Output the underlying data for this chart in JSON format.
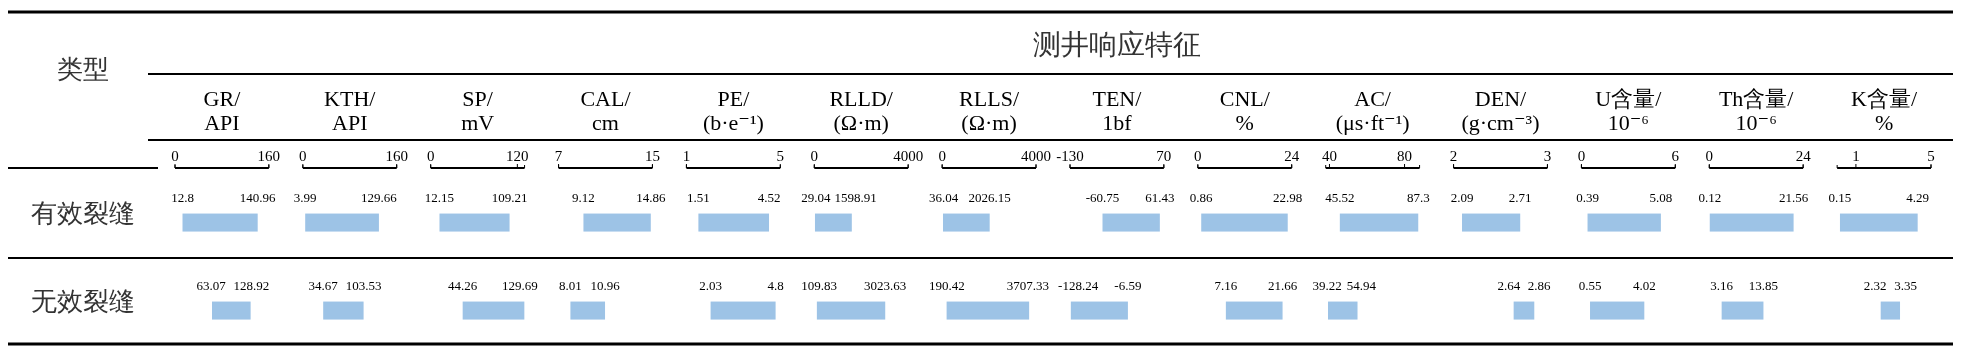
{
  "chart_data": [
    {
      "type": "bar",
      "orientation": "horizontal",
      "ylabel": "类型",
      "xlabel": "GR/API",
      "categories": [
        "有效裂缝",
        "无效裂缝"
      ],
      "base": [
        12.8,
        63.07
      ],
      "values": [
        128.16,
        65.85
      ],
      "color": "#9dc3e6",
      "xlim": [
        0,
        160
      ],
      "xticks": [
        0,
        160
      ],
      "annotations": [
        {
          "text": "12.8",
          "x": 12.8,
          "y": "有效裂缝"
        },
        {
          "text": "140.96",
          "x": 140.96,
          "y": "有效裂缝"
        },
        {
          "text": "63.07",
          "x": 63.07,
          "y": "无效裂缝"
        },
        {
          "text": "128.92",
          "x": 128.92,
          "y": "无效裂缝"
        }
      ]
    },
    {
      "type": "bar",
      "orientation": "horizontal",
      "tick_labels": "x",
      "xlabel": "KTH/API",
      "categories": [
        "有效裂缝",
        "无效裂缝"
      ],
      "base": [
        3.99,
        34.67
      ],
      "values": [
        125.67,
        68.86
      ],
      "color": "#9dc3e6",
      "xlim": [
        0,
        160
      ],
      "xticks": [
        0,
        160
      ],
      "annotations": [
        {
          "text": "3.99",
          "x": 3.99,
          "y": "有效裂缝"
        },
        {
          "text": "129.66",
          "x": 129.66,
          "y": "有效裂缝"
        },
        {
          "text": "34.67",
          "x": 34.67,
          "y": "无效裂缝"
        },
        {
          "text": "103.53",
          "x": 103.53,
          "y": "无效裂缝"
        }
      ]
    },
    {
      "type": "bar",
      "orientation": "horizontal",
      "tick_labels": "x",
      "xlabel": "SP/mV",
      "categories": [
        "有效裂缝",
        "无效裂缝"
      ],
      "base": [
        12.15,
        44.26
      ],
      "values": [
        97.06,
        85.43
      ],
      "color": "#9dc3e6",
      "xlim": [
        0,
        130
      ],
      "xticks": [
        0,
        120
      ],
      "annotations": [
        {
          "text": "12.15",
          "x": 12.15,
          "y": "有效裂缝"
        },
        {
          "text": "109.21",
          "x": 109.21,
          "y": "有效裂缝"
        },
        {
          "text": "44.26",
          "x": 44.26,
          "y": "无效裂缝"
        },
        {
          "text": "129.69",
          "x": 129.69,
          "y": "无效裂缝"
        }
      ]
    },
    {
      "type": "bar",
      "orientation": "horizontal",
      "tick_labels": "x",
      "xlabel": "CAL/cm",
      "categories": [
        "有效裂缝",
        "无效裂缝"
      ],
      "base": [
        9.12,
        8.01
      ],
      "values": [
        5.74,
        2.95
      ],
      "color": "#9dc3e6",
      "xlim": [
        7,
        15
      ],
      "xticks": [
        7,
        15
      ],
      "annotations": [
        {
          "text": "9.12",
          "x": 9.12,
          "y": "有效裂缝"
        },
        {
          "text": "14.86",
          "x": 14.86,
          "y": "有效裂缝"
        },
        {
          "text": "8.01",
          "x": 8.01,
          "y": "无效裂缝"
        },
        {
          "text": "10.96",
          "x": 10.96,
          "y": "无效裂缝"
        }
      ]
    },
    {
      "type": "bar",
      "orientation": "horizontal",
      "tick_labels": "x",
      "xlabel": "PE/(b·e⁻¹)",
      "categories": [
        "有效裂缝",
        "无效裂缝"
      ],
      "base": [
        1.51,
        2.03
      ],
      "values": [
        3.01,
        2.77
      ],
      "color": "#9dc3e6",
      "xlim": [
        1,
        5
      ],
      "xticks": [
        1,
        5
      ],
      "annotations": [
        {
          "text": "1.51",
          "x": 1.51,
          "y": "有效裂缝"
        },
        {
          "text": "4.52",
          "x": 4.52,
          "y": "有效裂缝"
        },
        {
          "text": "2.03",
          "x": 2.03,
          "y": "无效裂缝"
        },
        {
          "text": "4.8",
          "x": 4.8,
          "y": "无效裂缝"
        }
      ]
    },
    {
      "type": "bar",
      "orientation": "horizontal",
      "tick_labels": "x",
      "xlabel": "RLLD/(Ω·m)",
      "categories": [
        "有效裂缝",
        "无效裂缝"
      ],
      "base": [
        29.04,
        109.83
      ],
      "values": [
        1569.87,
        2913.8
      ],
      "color": "#9dc3e6",
      "xlim": [
        0,
        4000
      ],
      "xticks": [
        0,
        4000
      ],
      "annotations": [
        {
          "text": "29.04",
          "x": 29.04,
          "y": "有效裂缝"
        },
        {
          "text": "1598.91",
          "x": 1598.91,
          "y": "有效裂缝"
        },
        {
          "text": "109.83",
          "x": 109.83,
          "y": "无效裂缝"
        },
        {
          "text": "3023.63",
          "x": 3023.63,
          "y": "无效裂缝"
        }
      ]
    },
    {
      "type": "bar",
      "orientation": "horizontal",
      "tick_labels": "x",
      "xlabel": "RLLS/(Ω·m)",
      "categories": [
        "有效裂缝",
        "无效裂缝"
      ],
      "base": [
        36.04,
        190.42
      ],
      "values": [
        1990.11,
        3516.91
      ],
      "color": "#9dc3e6",
      "xlim": [
        0,
        4000
      ],
      "xticks": [
        0,
        4000
      ],
      "annotations": [
        {
          "text": "36.04",
          "x": 36.04,
          "y": "有效裂缝"
        },
        {
          "text": "2026.15",
          "x": 2026.15,
          "y": "有效裂缝"
        },
        {
          "text": "190.42",
          "x": 190.42,
          "y": "无效裂缝"
        },
        {
          "text": "3707.33",
          "x": 3707.33,
          "y": "无效裂缝"
        }
      ]
    },
    {
      "type": "bar",
      "orientation": "horizontal",
      "tick_labels": "x",
      "title": "测井响应特征",
      "xlabel": "TEN/1bf",
      "categories": [
        "有效裂缝",
        "无效裂缝"
      ],
      "base": [
        -60.75,
        -128.24
      ],
      "values": [
        122.18,
        121.65
      ],
      "color": "#9dc3e6",
      "xlim": [
        -130,
        70
      ],
      "xticks": [
        -130,
        70
      ],
      "annotations": [
        {
          "text": "-60.75",
          "x": -60.75,
          "y": "有效裂缝"
        },
        {
          "text": "61.43",
          "x": 61.43,
          "y": "有效裂缝"
        },
        {
          "text": "-128.24",
          "x": -128.24,
          "y": "无效裂缝"
        },
        {
          "text": "-6.59",
          "x": -6.59,
          "y": "无效裂缝"
        }
      ]
    },
    {
      "type": "bar",
      "orientation": "horizontal",
      "tick_labels": "x",
      "xlabel": "CNL/%",
      "categories": [
        "有效裂缝",
        "无效裂缝"
      ],
      "base": [
        0.86,
        7.16
      ],
      "values": [
        22.12,
        14.5
      ],
      "color": "#9dc3e6",
      "xlim": [
        0,
        24
      ],
      "xticks": [
        0,
        24
      ],
      "annotations": [
        {
          "text": "0.86",
          "x": 0.86,
          "y": "有效裂缝"
        },
        {
          "text": "22.98",
          "x": 22.98,
          "y": "有效裂缝"
        },
        {
          "text": "7.16",
          "x": 7.16,
          "y": "无效裂缝"
        },
        {
          "text": "21.66",
          "x": 21.66,
          "y": "无效裂缝"
        }
      ]
    },
    {
      "type": "bar",
      "orientation": "horizontal",
      "tick_labels": "x",
      "xlabel": "AC/(μs·ft⁻¹)",
      "categories": [
        "有效裂缝",
        "无效裂缝"
      ],
      "base": [
        45.52,
        39.22
      ],
      "values": [
        41.78,
        15.72
      ],
      "color": "#9dc3e6",
      "xlim": [
        38,
        88
      ],
      "xticks": [
        40,
        80
      ],
      "annotations": [
        {
          "text": "45.52",
          "x": 45.52,
          "y": "有效裂缝"
        },
        {
          "text": "87.3",
          "x": 87.3,
          "y": "有效裂缝"
        },
        {
          "text": "39.22",
          "x": 39.22,
          "y": "无效裂缝"
        },
        {
          "text": "54.94",
          "x": 54.94,
          "y": "无效裂缝"
        }
      ]
    },
    {
      "type": "bar",
      "orientation": "horizontal",
      "tick_labels": "x",
      "xlabel": "DEN/(g·cm⁻³)",
      "categories": [
        "有效裂缝",
        "无效裂缝"
      ],
      "base": [
        2.09,
        2.64
      ],
      "values": [
        0.62,
        0.22
      ],
      "color": "#9dc3e6",
      "xlim": [
        2,
        3
      ],
      "xticks": [
        2,
        3
      ],
      "annotations": [
        {
          "text": "2.09",
          "x": 2.09,
          "y": "有效裂缝"
        },
        {
          "text": "2.71",
          "x": 2.71,
          "y": "有效裂缝"
        },
        {
          "text": "2.64",
          "x": 2.64,
          "y": "无效裂缝"
        },
        {
          "text": "2.86",
          "x": 2.86,
          "y": "无效裂缝"
        }
      ]
    },
    {
      "type": "bar",
      "orientation": "horizontal",
      "tick_labels": "x",
      "xlabel": "U含量/10⁻⁶",
      "categories": [
        "有效裂缝",
        "无效裂缝"
      ],
      "base": [
        0.39,
        0.55
      ],
      "values": [
        4.69,
        3.47
      ],
      "color": "#9dc3e6",
      "xlim": [
        0,
        6
      ],
      "xticks": [
        0,
        6
      ],
      "annotations": [
        {
          "text": "0.39",
          "x": 0.39,
          "y": "有效裂缝"
        },
        {
          "text": "5.08",
          "x": 5.08,
          "y": "有效裂缝"
        },
        {
          "text": "0.55",
          "x": 0.55,
          "y": "无效裂缝"
        },
        {
          "text": "4.02",
          "x": 4.02,
          "y": "无效裂缝"
        }
      ]
    },
    {
      "type": "bar",
      "orientation": "horizontal",
      "tick_labels": "x",
      "xlabel": "Th含量/10⁻⁶",
      "categories": [
        "有效裂缝",
        "无效裂缝"
      ],
      "base": [
        0.12,
        3.16
      ],
      "values": [
        21.44,
        10.69
      ],
      "color": "#9dc3e6",
      "xlim": [
        0,
        24
      ],
      "xticks": [
        0,
        24
      ],
      "annotations": [
        {
          "text": "0.12",
          "x": 0.12,
          "y": "有效裂缝"
        },
        {
          "text": "21.56",
          "x": 21.56,
          "y": "有效裂缝"
        },
        {
          "text": "3.16",
          "x": 3.16,
          "y": "无效裂缝"
        },
        {
          "text": "13.85",
          "x": 13.85,
          "y": "无效裂缝"
        }
      ]
    },
    {
      "type": "bar",
      "orientation": "horizontal",
      "tick_labels": "x",
      "xlabel": "K含量/%",
      "categories": [
        "有效裂缝",
        "无效裂缝"
      ],
      "base": [
        0.15,
        2.32
      ],
      "values": [
        4.14,
        1.03
      ],
      "color": "#9dc3e6",
      "xlim": [
        0,
        5
      ],
      "xticks": [
        1,
        5
      ],
      "annotations": [
        {
          "text": "0.15",
          "x": 0.15,
          "y": "有效裂缝"
        },
        {
          "text": "4.29",
          "x": 4.29,
          "y": "有效裂缝"
        },
        {
          "text": "2.32",
          "x": 2.32,
          "y": "无效裂缝"
        },
        {
          "text": "3.35",
          "x": 3.35,
          "y": "无效裂缝"
        }
      ]
    }
  ]
}
